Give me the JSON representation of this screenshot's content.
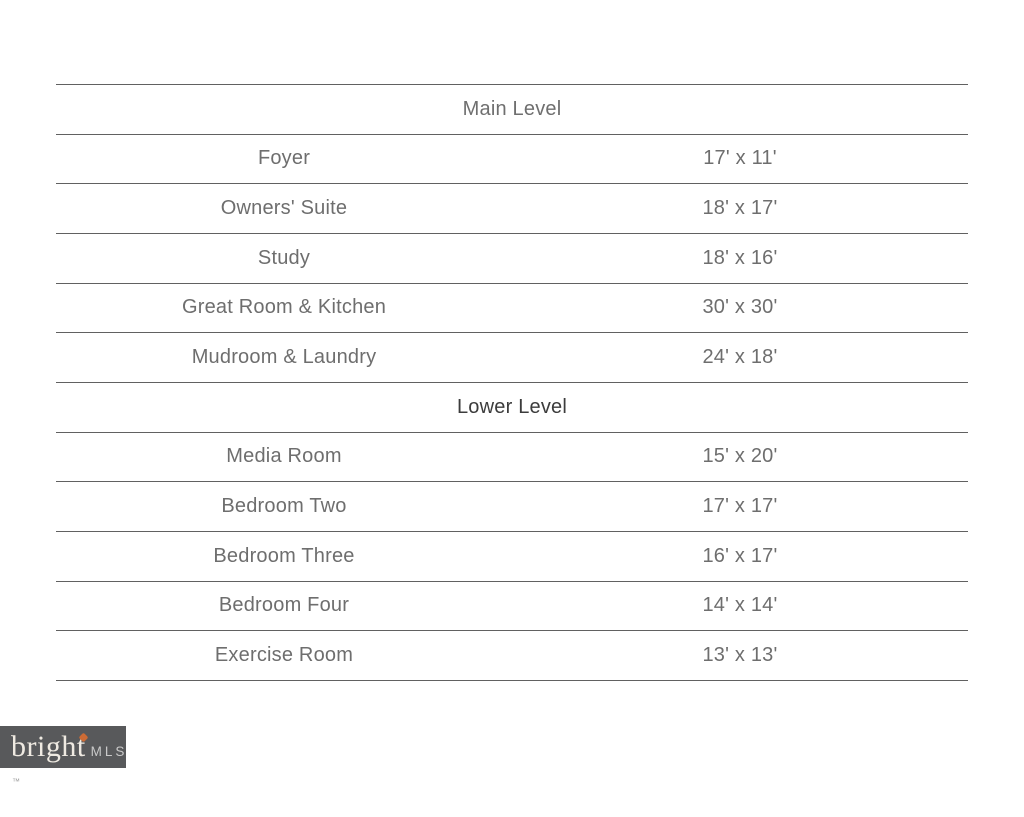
{
  "page": {
    "background": "#ffffff"
  },
  "table": {
    "line_color": "#616161",
    "row_text_color": "#6e6e6e",
    "sections": [
      {
        "label": "Main Level",
        "label_color": "#6f6f6f",
        "rows": [
          {
            "room": "Foyer",
            "dimensions": "17' x 11'"
          },
          {
            "room": "Owners' Suite",
            "dimensions": "18' x 17'"
          },
          {
            "room": "Study",
            "dimensions": "18' x 16'"
          },
          {
            "room": "Great Room & Kitchen",
            "dimensions": "30' x 30'"
          },
          {
            "room": "Mudroom & Laundry",
            "dimensions": "24' x 18'"
          }
        ]
      },
      {
        "label": "Lower Level",
        "label_color": "#3c3c3c",
        "rows": [
          {
            "room": "Media Room",
            "dimensions": "15' x 20'"
          },
          {
            "room": "Bedroom Two",
            "dimensions": "17' x 17'"
          },
          {
            "room": "Bedroom Three",
            "dimensions": "16' x 17'"
          },
          {
            "room": "Bedroom Four",
            "dimensions": "14' x 14'"
          },
          {
            "room": "Exercise Room",
            "dimensions": "13' x 13'"
          }
        ]
      }
    ]
  },
  "logo": {
    "brand": "bright",
    "trademark": "™",
    "suffix": "MLS",
    "background_color": "#58595b",
    "brand_color": "#efeae2",
    "trademark_color": "#9c9c9c",
    "suffix_color": "#c9c9c9",
    "spark_color": "#cc6b35"
  }
}
